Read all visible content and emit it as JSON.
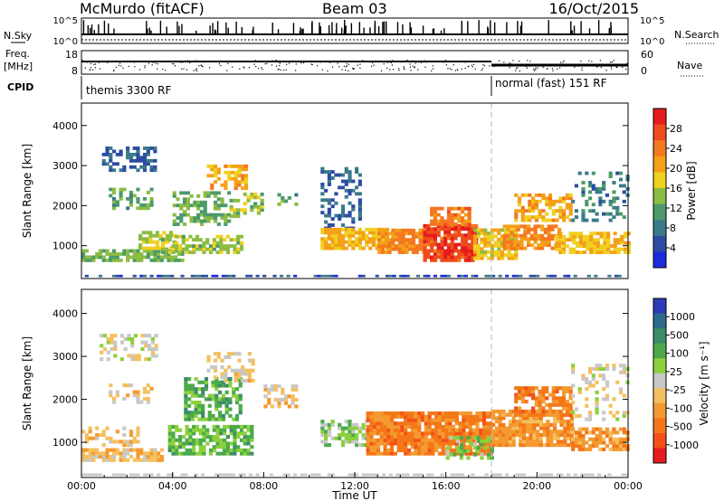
{
  "header": {
    "radar": "McMurdo (fitACF)",
    "beam": "Beam 03",
    "date": "16/Oct/2015"
  },
  "strips": {
    "nsky_label": "N.Sky",
    "nsearch_label": "N.Search",
    "freq_label_1": "Freq.",
    "freq_label_2": "[MHz]",
    "nave_label": "Nave",
    "cpid_label": "CPID",
    "left_ticks_top": [
      "10^5",
      "10^0"
    ],
    "right_ticks_top": [
      "10^5",
      "10^0"
    ],
    "left_ticks_freq": [
      "18",
      "8"
    ],
    "right_ticks_nave": [
      "60",
      "0"
    ],
    "cpid_segments": [
      {
        "label": "themis 3300 RF",
        "start_hour": 0,
        "end_hour": 18.0
      },
      {
        "label": "normal (fast) 151 RF",
        "start_hour": 18.0,
        "end_hour": 24.0
      }
    ]
  },
  "chart_data": [
    {
      "type": "heatmap",
      "title": "",
      "xlabel": "Time UT",
      "ylabel": "Slant Range [km]",
      "xlim": [
        0,
        24
      ],
      "ylim": [
        180,
        4560
      ],
      "yticks": [
        1000,
        2000,
        3000,
        4000
      ],
      "colorbar_label": "Power [dB]",
      "colorbar_ticks": [
        "4",
        "8",
        "12",
        "16",
        "20",
        "24",
        "28"
      ],
      "colorbar_colors": [
        "#1c2bdc",
        "#2c4ca4",
        "#3b7a8a",
        "#4c9a6a",
        "#8cbc44",
        "#f0d020",
        "#f4a018",
        "#f47820",
        "#ee4c1c",
        "#e41c1c"
      ],
      "value_range": [
        0,
        30
      ],
      "regions": [
        {
          "t": [
            0.9,
            3.2
          ],
          "r": [
            2850,
            3450
          ],
          "v": 6,
          "d": 0.5
        },
        {
          "t": [
            1.2,
            3.0
          ],
          "r": [
            1900,
            2400
          ],
          "v": 11,
          "d": 0.35
        },
        {
          "t": [
            0.0,
            4.5
          ],
          "r": [
            600,
            900
          ],
          "v": 12,
          "d": 0.75
        },
        {
          "t": [
            2.5,
            4.0
          ],
          "r": [
            900,
            1300
          ],
          "v": 15,
          "d": 0.5
        },
        {
          "t": [
            3.5,
            7.0
          ],
          "r": [
            800,
            1200
          ],
          "v": 14,
          "d": 0.6
        },
        {
          "t": [
            4.0,
            6.5
          ],
          "r": [
            1500,
            2300
          ],
          "v": 12,
          "d": 0.5
        },
        {
          "t": [
            5.5,
            7.3
          ],
          "r": [
            2400,
            3000
          ],
          "v": 19,
          "d": 0.45
        },
        {
          "t": [
            6.5,
            8.0
          ],
          "r": [
            1700,
            2300
          ],
          "v": 14,
          "d": 0.4
        },
        {
          "t": [
            8.6,
            9.5
          ],
          "r": [
            2000,
            2300
          ],
          "v": 10,
          "d": 0.35
        },
        {
          "t": [
            10.5,
            12.3
          ],
          "r": [
            1400,
            2900
          ],
          "v": 6,
          "d": 0.35
        },
        {
          "t": [
            10.5,
            13.5
          ],
          "r": [
            900,
            1400
          ],
          "v": 18,
          "d": 0.8
        },
        {
          "t": [
            13.0,
            15.0
          ],
          "r": [
            800,
            1400
          ],
          "v": 21,
          "d": 0.85
        },
        {
          "t": [
            15.0,
            17.3
          ],
          "r": [
            600,
            1500
          ],
          "v": 26,
          "d": 0.9
        },
        {
          "t": [
            15.3,
            17.0
          ],
          "r": [
            1500,
            1900
          ],
          "v": 22,
          "d": 0.7
        },
        {
          "t": [
            17.2,
            19.0
          ],
          "r": [
            650,
            1400
          ],
          "v": 17,
          "d": 0.8
        },
        {
          "t": [
            18.5,
            21.0
          ],
          "r": [
            900,
            1500
          ],
          "v": 21,
          "d": 0.75
        },
        {
          "t": [
            19.0,
            21.5
          ],
          "r": [
            1600,
            2300
          ],
          "v": 19,
          "d": 0.6
        },
        {
          "t": [
            20.8,
            24.0
          ],
          "r": [
            800,
            1300
          ],
          "v": 18,
          "d": 0.75
        },
        {
          "t": [
            21.5,
            24.0
          ],
          "r": [
            1600,
            2800
          ],
          "v": 8,
          "d": 0.25
        }
      ]
    },
    {
      "type": "heatmap",
      "title": "",
      "xlabel": "Time UT",
      "ylabel": "Slant Range [km]",
      "xlim": [
        0,
        24
      ],
      "ylim": [
        180,
        4560
      ],
      "xticks": [
        "00:00",
        "04:00",
        "08:00",
        "12:00",
        "16:00",
        "20:00",
        "00:00"
      ],
      "yticks": [
        1000,
        2000,
        3000,
        4000
      ],
      "colorbar_label": "Velocity [m s⁻¹]",
      "colorbar_ticks": [
        "1000",
        "500",
        "100",
        "25",
        "-25",
        "-100",
        "-500",
        "-1000"
      ],
      "colorbar_colors": [
        "#2a3cb8",
        "#2c6a8c",
        "#3c8c6a",
        "#4caa4c",
        "#8cd03c",
        "#c8c8c8",
        "#f4c060",
        "#f49a30",
        "#f47818",
        "#f45018",
        "#e41c1c"
      ],
      "value_range": [
        -1000,
        1000
      ],
      "regions": [
        {
          "t": [
            0.0,
            3.5
          ],
          "r": [
            550,
            800
          ],
          "v": -200,
          "d": 0.8
        },
        {
          "t": [
            0.8,
            3.2
          ],
          "r": [
            2900,
            3450
          ],
          "v": 0,
          "d": 0.45
        },
        {
          "t": [
            1.2,
            3.0
          ],
          "r": [
            1900,
            2300
          ],
          "v": -150,
          "d": 0.4
        },
        {
          "t": [
            0.0,
            2.5
          ],
          "r": [
            900,
            1300
          ],
          "v": -200,
          "d": 0.35
        },
        {
          "t": [
            3.8,
            7.5
          ],
          "r": [
            700,
            1400
          ],
          "v": 300,
          "d": 0.7
        },
        {
          "t": [
            4.5,
            7.0
          ],
          "r": [
            1500,
            2500
          ],
          "v": 350,
          "d": 0.55
        },
        {
          "t": [
            5.5,
            7.5
          ],
          "r": [
            2400,
            3100
          ],
          "v": -100,
          "d": 0.4
        },
        {
          "t": [
            8.0,
            9.5
          ],
          "r": [
            1800,
            2300
          ],
          "v": -200,
          "d": 0.35
        },
        {
          "t": [
            10.5,
            12.5
          ],
          "r": [
            900,
            1500
          ],
          "v": 150,
          "d": 0.6
        },
        {
          "t": [
            12.5,
            18.0
          ],
          "r": [
            700,
            1700
          ],
          "v": -500,
          "d": 0.9
        },
        {
          "t": [
            16.0,
            18.0
          ],
          "r": [
            600,
            1100
          ],
          "v": 200,
          "d": 0.45
        },
        {
          "t": [
            18.0,
            21.5
          ],
          "r": [
            900,
            1700
          ],
          "v": -400,
          "d": 0.85
        },
        {
          "t": [
            19.0,
            21.5
          ],
          "r": [
            1600,
            2300
          ],
          "v": -500,
          "d": 0.7
        },
        {
          "t": [
            21.5,
            24.0
          ],
          "r": [
            800,
            1300
          ],
          "v": -400,
          "d": 0.75
        },
        {
          "t": [
            21.5,
            24.0
          ],
          "r": [
            1500,
            2800
          ],
          "v": -40,
          "d": 0.25
        }
      ]
    }
  ]
}
